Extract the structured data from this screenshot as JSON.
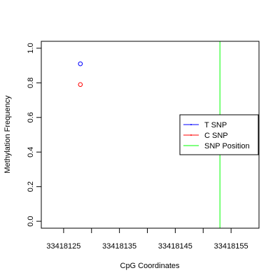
{
  "chart_data": {
    "type": "scatter",
    "title": "",
    "xlabel": "CpG Coordinates",
    "ylabel": "Methylation Frequency",
    "xlim": [
      33418121,
      33418160
    ],
    "ylim": [
      -0.04,
      1.04
    ],
    "xticks": [
      33418125,
      33418130,
      33418135,
      33418140,
      33418145,
      33418150,
      33418155
    ],
    "xtick_labels": [
      "33418125",
      "",
      "33418135",
      "",
      "33418145",
      "",
      "33418155"
    ],
    "yticks": [
      0.0,
      0.2,
      0.4,
      0.6,
      0.8,
      1.0
    ],
    "ytick_labels": [
      "0.0",
      "0.2",
      "0.4",
      "0.6",
      "0.8",
      "1.0"
    ],
    "grid": false,
    "legend_position": "right",
    "series": [
      {
        "name": "T SNP",
        "color": "#0000ff",
        "marker": "open-circle",
        "points": [
          {
            "x": 33418128,
            "y": 0.91
          }
        ]
      },
      {
        "name": "C SNP",
        "color": "#ff0000",
        "marker": "open-circle",
        "points": [
          {
            "x": 33418128,
            "y": 0.79
          }
        ]
      }
    ],
    "snp_position": {
      "name": "SNP Position",
      "color": "#00ff00",
      "x": 33418153
    }
  }
}
